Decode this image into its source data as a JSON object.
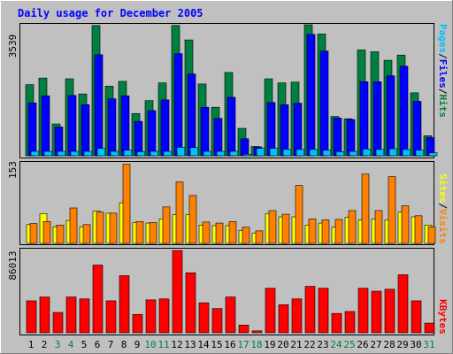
{
  "chart_data": {
    "type": "bar",
    "title": "Daily usage for December 2005",
    "days": [
      "1",
      "2",
      "3",
      "4",
      "5",
      "6",
      "7",
      "8",
      "9",
      "10",
      "11",
      "12",
      "13",
      "14",
      "15",
      "16",
      "17",
      "18",
      "19",
      "20",
      "21",
      "22",
      "23",
      "24",
      "25",
      "26",
      "27",
      "28",
      "29",
      "30",
      "31"
    ],
    "weekend_days": [
      "3",
      "4",
      "10",
      "11",
      "17",
      "18",
      "24",
      "25",
      "31"
    ],
    "panels": [
      {
        "id": "top",
        "max_label": "3539",
        "ymax": 3539,
        "right_label": [
          "Pages",
          "Files",
          "Hits"
        ],
        "series": [
          {
            "name": "Hits",
            "values": [
              1920,
              2100,
              860,
              2080,
              1670,
              3520,
              1880,
              2010,
              1140,
              1490,
              1970,
              3520,
              3130,
              1940,
              1310,
              2250,
              740,
              250,
              2080,
              1970,
              1990,
              3580,
              3290,
              1060,
              1000,
              2860,
              2810,
              2580,
              2720,
              1700,
              540
            ]
          },
          {
            "name": "Files",
            "values": [
              1430,
              1620,
              780,
              1630,
              1380,
              2730,
              1540,
              1620,
              930,
              1220,
              1510,
              2760,
              2210,
              1310,
              1010,
              1580,
              460,
              240,
              1440,
              1380,
              1420,
              3280,
              2830,
              1020,
              980,
              2000,
              2000,
              2160,
              2420,
              1470,
              490
            ]
          },
          {
            "name": "Pages",
            "values": [
              120,
              120,
              120,
              120,
              120,
              200,
              120,
              150,
              110,
              120,
              120,
              230,
              220,
              120,
              120,
              120,
              40,
              200,
              200,
              170,
              170,
              170,
              150,
              110,
              120,
              180,
              170,
              190,
              170,
              150,
              80
            ]
          }
        ]
      },
      {
        "id": "middle",
        "max_label": "153",
        "ymax": 153,
        "right_label": [
          "Sites",
          "Visits"
        ],
        "series": [
          {
            "name": "Visits",
            "values": [
              38,
              42,
              35,
              68,
              36,
              60,
              58,
              152,
              42,
              40,
              70,
              118,
              92,
              41,
              39,
              42,
              31,
              24,
              63,
              56,
              111,
              47,
              45,
              46,
              63,
              133,
              63,
              128,
              72,
              53,
              32
            ]
          },
          {
            "name": "Sites",
            "values": [
              36,
              57,
              32,
              44,
              32,
              62,
              58,
              78,
              40,
              39,
              47,
              55,
              55,
              35,
              34,
              34,
              25,
              20,
              57,
              51,
              51,
              35,
              39,
              31,
              50,
              45,
              47,
              45,
              60,
              51,
              35
            ]
          }
        ]
      },
      {
        "id": "bottom",
        "max_label": "86013",
        "ymax": 86013,
        "right_label": [
          "KBytes"
        ],
        "series": [
          {
            "name": "KBytes",
            "values": [
              33000,
              37000,
              21000,
              37000,
              35000,
              70000,
              33000,
              59000,
              19000,
              34000,
              35000,
              85000,
              62000,
              31000,
              25000,
              37000,
              8000,
              2000,
              46000,
              29000,
              35000,
              48000,
              46000,
              20000,
              22000,
              46000,
              43000,
              45000,
              60000,
              33000,
              10000
            ]
          }
        ]
      }
    ],
    "colors": {
      "background": "#c0c0c0",
      "frame": "#ffffff",
      "title": "#0000ff",
      "day_label": "#000000",
      "weekend_label": "#008040",
      "Hits": "#008040",
      "Files": "#0000ff",
      "Pages": "#00c0ff",
      "Visits": "#ff8000",
      "Sites": "#ffff00",
      "KBytes": "#ff0000"
    }
  }
}
